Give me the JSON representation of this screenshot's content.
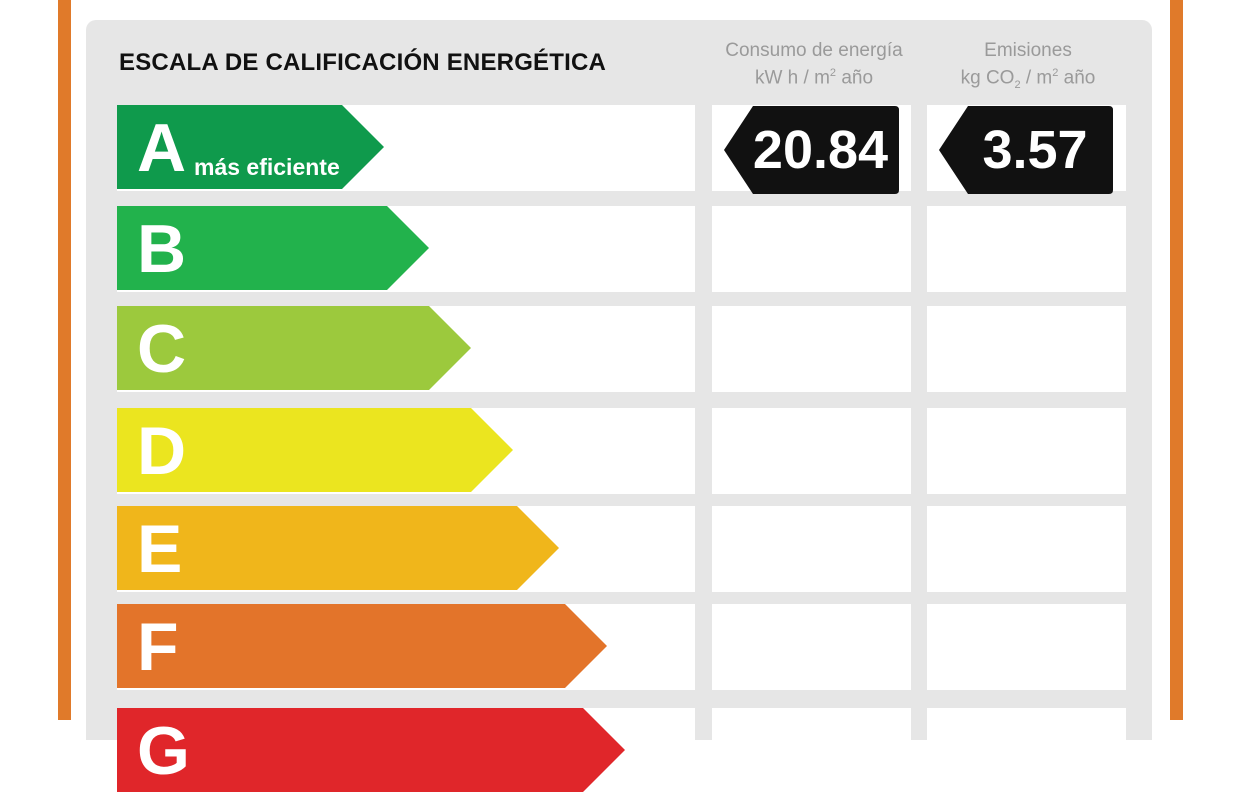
{
  "title": "ESCALA DE CALIFICACIÓN ENERGÉTICA",
  "columns": {
    "energy": {
      "line1": "Consumo de energía",
      "line2_pre": "kW h / m",
      "line2_sup": "2",
      "line2_post": " año"
    },
    "co2": {
      "line1": "Emisiones",
      "line2_pre": "kg CO",
      "line2_sub": "2",
      "line2_mid": " / m",
      "line2_sup": "2",
      "line2_post": " año"
    }
  },
  "scale": [
    {
      "letter": "A",
      "label": "más eficiente",
      "color": "#0f9a4c"
    },
    {
      "letter": "B",
      "label": "",
      "color": "#22b24c"
    },
    {
      "letter": "C",
      "label": "",
      "color": "#9cc93d"
    },
    {
      "letter": "D",
      "label": "",
      "color": "#ebe51f"
    },
    {
      "letter": "E",
      "label": "",
      "color": "#f0b61b"
    },
    {
      "letter": "F",
      "label": "",
      "color": "#e3742a"
    },
    {
      "letter": "G",
      "label": "",
      "color": "#e0262a"
    }
  ],
  "rating": {
    "class": "A",
    "energy_value": "20.84",
    "co2_value": "3.57"
  },
  "colors": {
    "frame": "#e07a2a",
    "panel": "#e6e6e6",
    "badge": "#111111"
  }
}
